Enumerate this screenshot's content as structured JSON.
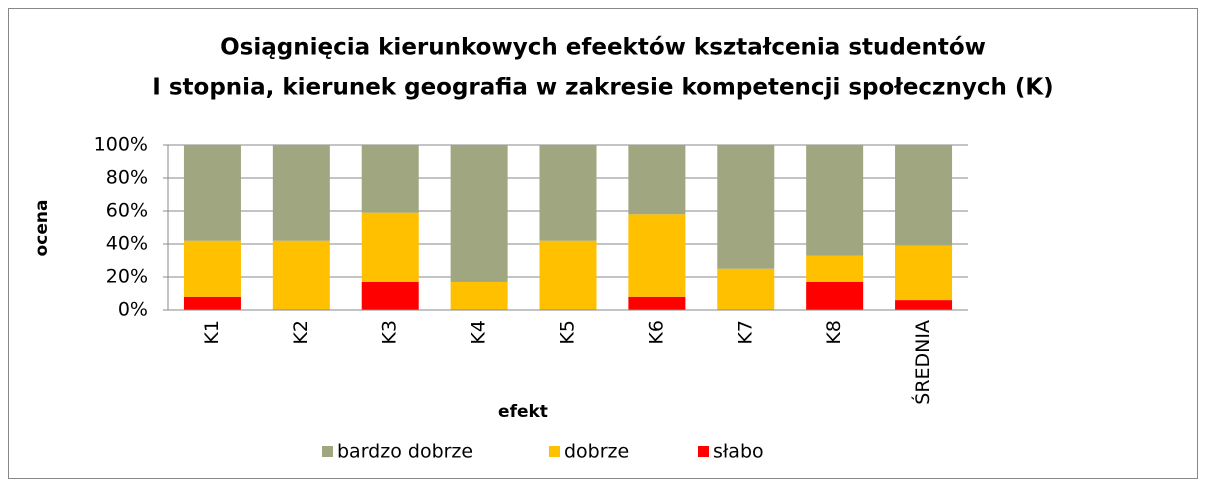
{
  "chart_data": {
    "type": "stacked-bar",
    "title": [
      "Osiągnięcia kierunkowych efeektów kształcenia studentów",
      "I stopnia, kierunek geografia w zakresie kompetencji społecznych (K)"
    ],
    "x_label": "efekt",
    "y_label": "ocena",
    "categories": [
      "K1",
      "K2",
      "K3",
      "K4",
      "K5",
      "K6",
      "K7",
      "K8",
      "ŚREDNIA"
    ],
    "series": [
      {
        "name": "bardzo dobrze",
        "color": "#a0a67f",
        "values": [
          58,
          58,
          41,
          83,
          58,
          42,
          75,
          67,
          61
        ]
      },
      {
        "name": "dobrze",
        "color": "#ffc000",
        "values": [
          34,
          42,
          42,
          17,
          42,
          50,
          25,
          16,
          33
        ]
      },
      {
        "name": "słabo",
        "color": "#ff0000",
        "values": [
          8,
          0,
          17,
          0,
          0,
          8,
          0,
          17,
          6
        ]
      }
    ],
    "ylim": [
      0,
      100
    ],
    "yticks": [
      {
        "value": 0,
        "label": "0%"
      },
      {
        "value": 20,
        "label": "20%"
      },
      {
        "value": 40,
        "label": "40%"
      },
      {
        "value": 60,
        "label": "60%"
      },
      {
        "value": 80,
        "label": "80%"
      },
      {
        "value": 100,
        "label": "100%"
      }
    ],
    "grid": true,
    "legend": "bottom"
  }
}
